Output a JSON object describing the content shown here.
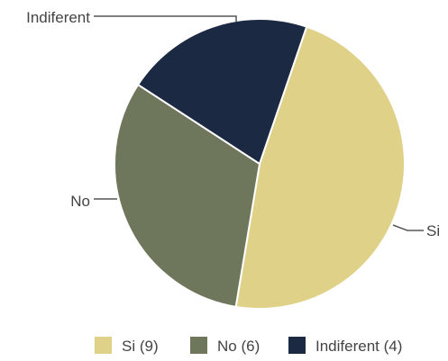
{
  "chart_data": {
    "type": "pie",
    "slices": [
      {
        "label": "Si",
        "value": 9,
        "color": "#dfd188",
        "legend": "Si (9)"
      },
      {
        "label": "No",
        "value": 6,
        "color": "#6e765c",
        "legend": "No (6)"
      },
      {
        "label": "Indiferent",
        "value": 4,
        "color": "#1c2942",
        "legend": "Indiferent (4)"
      }
    ],
    "legend_position": "bottom",
    "label_style": "leader-lines"
  }
}
